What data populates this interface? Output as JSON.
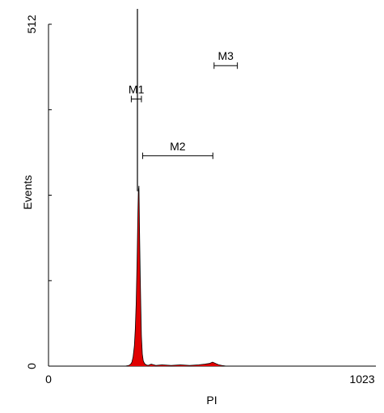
{
  "chart_data": {
    "type": "area",
    "xlabel": "PI",
    "ylabel": "Events",
    "xlim": [
      0,
      1023
    ],
    "ylim": [
      0,
      512
    ],
    "x_ticks": [
      "0",
      "1023"
    ],
    "y_ticks": [
      "0",
      "512"
    ],
    "fill_color": "#e00000",
    "line_color": "#000000",
    "grid": false,
    "x": [
      250,
      262,
      268,
      272,
      276,
      280,
      283,
      286,
      289,
      291,
      293,
      295,
      297,
      299,
      301,
      303,
      306,
      309,
      313,
      318,
      325,
      335,
      350,
      370,
      400,
      430,
      460,
      490,
      510,
      525,
      535,
      545,
      555,
      565,
      580,
      600
    ],
    "y": [
      0,
      1,
      3,
      6,
      14,
      30,
      55,
      95,
      160,
      215,
      262,
      270,
      200,
      140,
      90,
      45,
      18,
      8,
      4,
      2,
      1,
      3,
      1,
      2,
      1,
      2,
      1,
      2,
      3,
      4,
      6,
      4,
      2,
      1,
      0,
      0
    ],
    "peak_line": {
      "x": 290,
      "y": 535
    },
    "markers": [
      {
        "label": "M1",
        "x_start": 270,
        "x_end": 303,
        "level": 400
      },
      {
        "label": "M2",
        "x_start": 307,
        "x_end": 536,
        "level": 315
      },
      {
        "label": "M3",
        "x_start": 540,
        "x_end": 616,
        "level": 450
      }
    ]
  }
}
